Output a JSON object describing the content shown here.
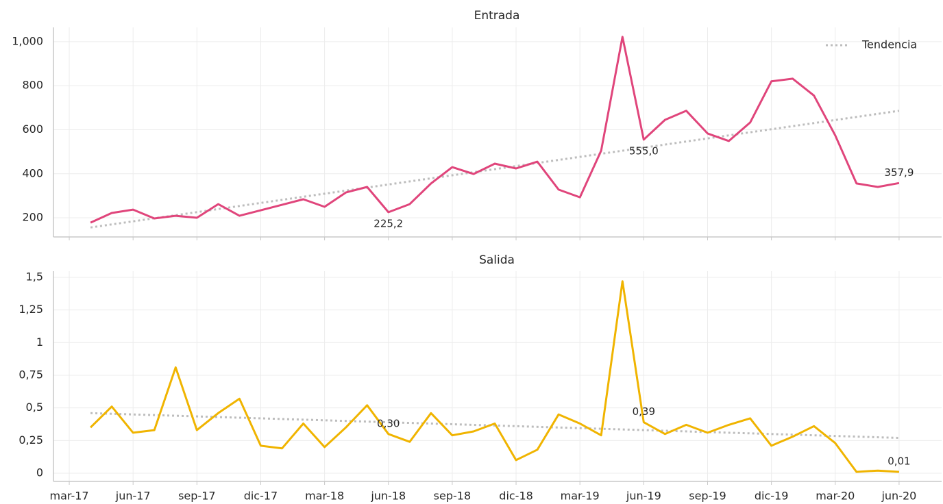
{
  "chart_data": [
    {
      "type": "line",
      "title": "Entrada",
      "x": [
        "2017-04",
        "2017-05",
        "2017-06",
        "2017-07",
        "2017-08",
        "2017-09",
        "2017-10",
        "2017-11",
        "2017-12",
        "2018-01",
        "2018-02",
        "2018-03",
        "2018-04",
        "2018-05",
        "2018-06",
        "2018-07",
        "2018-08",
        "2018-09",
        "2018-10",
        "2018-11",
        "2018-12",
        "2019-01",
        "2019-02",
        "2019-03",
        "2019-04",
        "2019-05",
        "2019-06",
        "2019-07",
        "2019-08",
        "2019-09",
        "2019-10",
        "2019-11",
        "2019-12",
        "2020-01",
        "2020-02",
        "2020-03",
        "2020-04",
        "2020-05",
        "2020-06"
      ],
      "series": [
        {
          "color": "#e0457b",
          "values": [
            178,
            222,
            237,
            197,
            209,
            200,
            262,
            209,
            234,
            259,
            284,
            250,
            315,
            340,
            225.2,
            262,
            356,
            430,
            399,
            446,
            424,
            455,
            328,
            293,
            505,
            1022,
            555.0,
            645,
            686,
            583,
            549,
            633,
            820,
            832,
            755,
            574,
            356,
            340,
            357.9
          ],
          "value_labels": [
            null,
            null,
            null,
            null,
            null,
            null,
            null,
            null,
            null,
            null,
            null,
            null,
            null,
            null,
            "225,2",
            null,
            null,
            null,
            null,
            null,
            null,
            null,
            null,
            null,
            null,
            null,
            "555,0",
            null,
            null,
            null,
            null,
            null,
            null,
            null,
            null,
            null,
            null,
            null,
            "357,9"
          ]
        },
        {
          "name": "Tendencia",
          "color": "#bdbdbd",
          "style": "dotted",
          "x": [
            "2017-04",
            "2020-06"
          ],
          "values": [
            156,
            686
          ]
        }
      ],
      "xlim": [
        "2017-02",
        "2020-08"
      ],
      "xticks": [
        "2017-03",
        "2017-06",
        "2017-09",
        "2017-12",
        "2018-03",
        "2018-06",
        "2018-09",
        "2018-12",
        "2019-03",
        "2019-06",
        "2019-09",
        "2019-12",
        "2020-03",
        "2020-06"
      ],
      "ylim": [
        113,
        1065
      ],
      "yticks": [
        200,
        400,
        600,
        800,
        {
          "value": 1000,
          "label": "1,000"
        }
      ],
      "grid": true,
      "legend": "upper right"
    },
    {
      "type": "line",
      "title": "Salida",
      "x": [
        "2017-04",
        "2017-05",
        "2017-06",
        "2017-07",
        "2017-08",
        "2017-09",
        "2017-10",
        "2017-11",
        "2017-12",
        "2018-01",
        "2018-02",
        "2018-03",
        "2018-04",
        "2018-05",
        "2018-06",
        "2018-07",
        "2018-08",
        "2018-09",
        "2018-10",
        "2018-11",
        "2018-12",
        "2019-01",
        "2019-02",
        "2019-03",
        "2019-04",
        "2019-05",
        "2019-06",
        "2019-07",
        "2019-08",
        "2019-09",
        "2019-10",
        "2019-11",
        "2019-12",
        "2020-01",
        "2020-02",
        "2020-03",
        "2020-04",
        "2020-05",
        "2020-06"
      ],
      "series": [
        {
          "color": "#f0b400",
          "values": [
            0.35,
            0.51,
            0.31,
            0.33,
            0.81,
            0.33,
            0.46,
            0.57,
            0.21,
            0.19,
            0.38,
            0.2,
            0.35,
            0.52,
            0.3,
            0.24,
            0.46,
            0.29,
            0.32,
            0.38,
            0.1,
            0.18,
            0.45,
            0.38,
            0.29,
            1.47,
            0.39,
            0.3,
            0.37,
            0.31,
            0.37,
            0.42,
            0.21,
            0.28,
            0.36,
            0.23,
            0.01,
            0.02,
            0.01
          ],
          "value_labels": [
            null,
            null,
            null,
            null,
            null,
            null,
            null,
            null,
            null,
            null,
            null,
            null,
            null,
            null,
            "0,30",
            null,
            null,
            null,
            null,
            null,
            null,
            null,
            null,
            null,
            null,
            null,
            "0,39",
            null,
            null,
            null,
            null,
            null,
            null,
            null,
            null,
            null,
            null,
            null,
            "0,01"
          ]
        },
        {
          "color": "#bdbdbd",
          "style": "dotted",
          "x": [
            "2017-04",
            "2020-06"
          ],
          "values": [
            0.46,
            0.27
          ]
        }
      ],
      "xlim": [
        "2017-02",
        "2020-08"
      ],
      "xticks": [
        {
          "value": "2017-03",
          "label": "mar-17"
        },
        {
          "value": "2017-06",
          "label": "jun-17"
        },
        {
          "value": "2017-09",
          "label": "sep-17"
        },
        {
          "value": "2017-12",
          "label": "dic-17"
        },
        {
          "value": "2018-03",
          "label": "mar-18"
        },
        {
          "value": "2018-06",
          "label": "jun-18"
        },
        {
          "value": "2018-09",
          "label": "sep-18"
        },
        {
          "value": "2018-12",
          "label": "dic-18"
        },
        {
          "value": "2019-03",
          "label": "mar-19"
        },
        {
          "value": "2019-06",
          "label": "jun-19"
        },
        {
          "value": "2019-09",
          "label": "sep-19"
        },
        {
          "value": "2019-12",
          "label": "dic-19"
        },
        {
          "value": "2020-03",
          "label": "mar-20"
        },
        {
          "value": "2020-06",
          "label": "jun-20"
        }
      ],
      "ylim": [
        -0.063,
        1.547
      ],
      "yticks": [
        0,
        {
          "value": 0.25,
          "label": "0,25"
        },
        {
          "value": 0.5,
          "label": "0,5"
        },
        {
          "value": 0.75,
          "label": "0,75"
        },
        1,
        {
          "value": 1.25,
          "label": "1,25"
        },
        {
          "value": 1.5,
          "label": "1,5"
        }
      ],
      "grid": true
    }
  ]
}
